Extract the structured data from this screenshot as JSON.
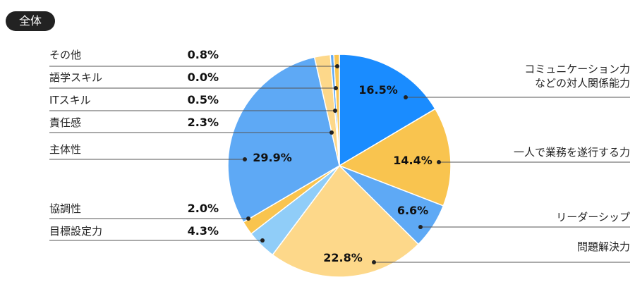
{
  "chart_data": {
    "type": "pie",
    "title": "全体",
    "categories": [
      "コミュニケーション力\nなどの対人関係能力",
      "一人で業務を遂行する力",
      "リーダーシップ",
      "問題解決力",
      "目標設定力",
      "協調性",
      "主体性",
      "責任感",
      "ITスキル",
      "語学スキル",
      "その他"
    ],
    "values": [
      16.5,
      14.4,
      6.6,
      22.8,
      4.3,
      2.0,
      29.9,
      2.3,
      0.5,
      0.0,
      0.8
    ],
    "value_labels": [
      "16.5%",
      "14.4%",
      "6.6%",
      "22.8%",
      "4.3%",
      "2.0%",
      "29.9%",
      "2.3%",
      "0.5%",
      "0.0%",
      "0.8%"
    ],
    "colors": [
      "#1a8cff",
      "#f9c44f",
      "#5ea9f5",
      "#fdd88a",
      "#90cdf8",
      "#f9c44f",
      "#5ea9f5",
      "#fdd88a",
      "#5ea9f5",
      "#90cdf8",
      "#f9c44f"
    ]
  }
}
